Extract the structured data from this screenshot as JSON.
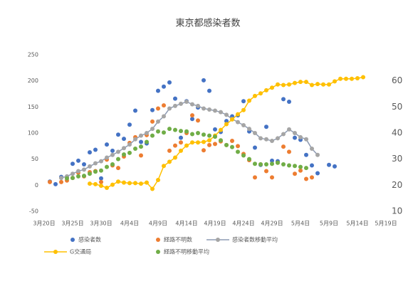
{
  "chart_data": {
    "type": "scatter",
    "title": "東京都感染者数",
    "x": [
      1,
      2,
      3,
      4,
      5,
      6,
      7,
      8,
      9,
      10,
      11,
      12,
      13,
      14,
      15,
      16,
      17,
      18,
      19,
      20,
      21,
      22,
      23,
      24,
      25,
      26,
      27,
      28,
      29,
      30,
      31,
      32,
      33,
      34,
      35,
      36,
      37,
      38,
      39,
      40,
      41,
      42,
      43,
      44,
      45,
      46,
      47,
      48,
      49,
      50,
      51,
      52,
      53,
      54,
      55,
      56
    ],
    "xlim": [
      0,
      60
    ],
    "xticks": [
      {
        "value": 0,
        "label": "3月20日"
      },
      {
        "value": 5,
        "label": "3月25日"
      },
      {
        "value": 10,
        "label": "3月30日"
      },
      {
        "value": 15,
        "label": "4月4日"
      },
      {
        "value": 20,
        "label": "4月9日"
      },
      {
        "value": 25,
        "label": "4月14日"
      },
      {
        "value": 30,
        "label": "4月19日"
      },
      {
        "value": 35,
        "label": "4月24日"
      },
      {
        "value": 40,
        "label": "4月29日"
      },
      {
        "value": 45,
        "label": "5月4日"
      },
      {
        "value": 50,
        "label": "5月9日"
      },
      {
        "value": 55,
        "label": "5月14日"
      },
      {
        "value": 60,
        "label": "5月19日"
      }
    ],
    "ylim": [
      -50,
      250
    ],
    "yticks": [
      -50,
      0,
      50,
      100,
      150,
      200,
      250
    ],
    "y2lim": [
      10,
      70
    ],
    "y2ticks": [
      10,
      20,
      30,
      40,
      50,
      60
    ],
    "series": [
      {
        "name": "感染者数",
        "color": "#4472c4",
        "mode": "markers",
        "values": [
          7,
          2,
          16,
          16,
          41,
          47,
          40,
          63,
          68,
          13,
          78,
          66,
          97,
          89,
          116,
          143,
          83,
          80,
          144,
          181,
          189,
          197,
          166,
          91,
          161,
          127,
          149,
          201,
          181,
          107,
          102,
          123,
          132,
          134,
          161,
          103,
          72,
          39,
          112,
          47,
          46,
          165,
          160,
          91,
          87,
          58,
          38,
          23,
          null,
          39,
          36,
          null,
          null,
          null,
          null,
          null
        ]
      },
      {
        "name": "経路不明数",
        "color": "#ed7d31",
        "mode": "markers",
        "values": [
          6,
          null,
          6,
          9,
          14,
          24,
          17,
          25,
          27,
          6,
          49,
          38,
          33,
          55,
          81,
          92,
          57,
          96,
          122,
          147,
          153,
          66,
          76,
          82,
          100,
          134,
          124,
          67,
          77,
          79,
          84,
          77,
          85,
          75,
          60,
          48,
          15,
          40,
          27,
          15,
          43,
          74,
          64,
          22,
          28,
          12,
          15,
          null,
          null,
          null,
          null,
          null,
          null,
          null,
          null,
          null
        ]
      },
      {
        "name": "感染者数移動平均",
        "color": "#a5a5a5",
        "line_color": "#8e9bb3",
        "mode": "lines+markers",
        "values": [
          null,
          null,
          14,
          17,
          22,
          27,
          30,
          36,
          42,
          46,
          53,
          58,
          64,
          71,
          78,
          88,
          95,
          100,
          108,
          122,
          132,
          147,
          152,
          156,
          160,
          155,
          152,
          147,
          145,
          143,
          140,
          135,
          127,
          121,
          115,
          108,
          100,
          90,
          88,
          85,
          90,
          98,
          107,
          100,
          92,
          88,
          70,
          58,
          null,
          null,
          null,
          null,
          null,
          null,
          null,
          null
        ]
      },
      {
        "name": "G交通局",
        "color": "#ffc000",
        "mode": "lines+markers",
        "axis": "y2",
        "values": [
          null,
          null,
          null,
          null,
          null,
          null,
          null,
          20.6,
          20.4,
          19.8,
          19,
          20.2,
          21.4,
          21,
          20.8,
          20.8,
          20.6,
          21,
          18.6,
          22,
          27.4,
          29,
          30.6,
          33.2,
          35.2,
          36.4,
          36.4,
          36.6,
          37.2,
          39,
          41.2,
          43.4,
          45.2,
          47.2,
          48.8,
          52.4,
          54.2,
          55.2,
          56.4,
          57.4,
          58.6,
          58.4,
          58.6,
          59.2,
          59.6,
          59.6,
          58.4,
          58.8,
          58.6,
          58.6,
          59.8,
          60.8,
          60.8,
          60.8,
          61,
          61.4
        ]
      },
      {
        "name": "経路不明移動平均",
        "color": "#70ad47",
        "mode": "markers",
        "values": [
          null,
          null,
          null,
          13,
          14,
          17,
          18,
          22,
          26,
          28,
          35,
          40,
          50,
          59,
          62,
          70,
          74,
          83,
          95,
          103,
          101,
          108,
          106,
          104,
          103,
          98,
          100,
          97,
          95,
          93,
          86,
          77,
          73,
          64,
          57,
          50,
          41,
          40,
          40,
          41,
          43,
          40,
          38,
          37,
          35,
          33,
          null,
          null,
          null,
          null,
          null,
          null,
          null,
          null,
          null,
          null
        ]
      }
    ]
  }
}
